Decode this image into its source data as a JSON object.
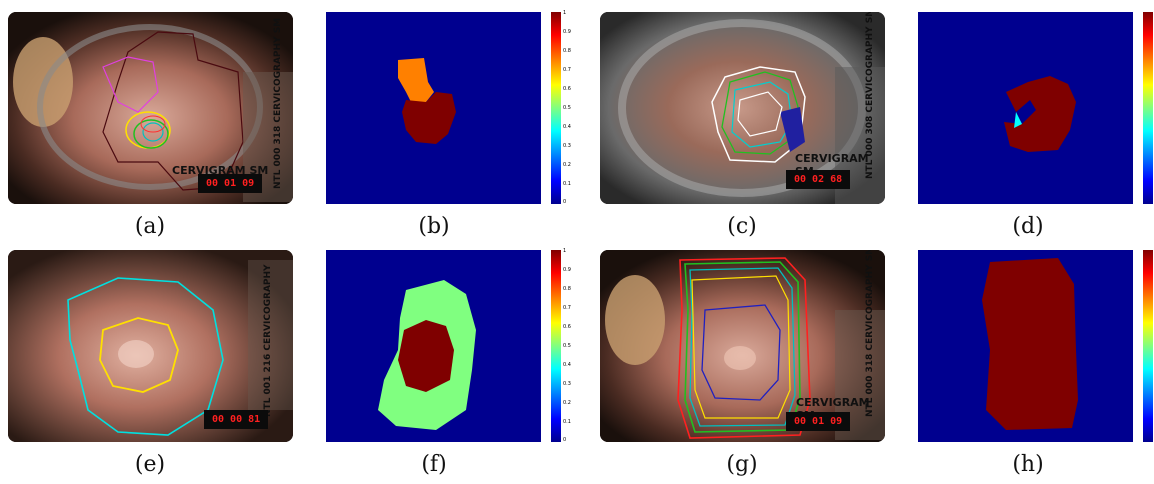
{
  "panels": [
    {
      "caption": "(a)",
      "stamp": "00 01 09",
      "vertical_text": "NTL  000 318  CERVICOGRAPHY SM",
      "cervigram": "CERVIGRAM SM"
    },
    {
      "caption": "(b)"
    },
    {
      "caption": "(c)",
      "stamp": "00 02 68",
      "vertical_text": "NTL  000 308  CERVICOGRAPHY SM",
      "cervigram": "CERVIGRAM SM"
    },
    {
      "caption": "(d)"
    },
    {
      "caption": "(e)",
      "stamp": "00 00 81",
      "vertical_text": "NTL  001 216  CERVICOGRAPHY",
      "cervigram": ""
    },
    {
      "caption": "(f)"
    },
    {
      "caption": "(g)",
      "stamp": "00 01 09",
      "vertical_text": "NTL  000 318  CERVICOGRAPHY SM",
      "cervigram": "CERVIGRAM SM"
    },
    {
      "caption": "(h)"
    }
  ],
  "colorbar_ticks": [
    "1",
    "0.9",
    "0.8",
    "0.7",
    "0.6",
    "0.5",
    "0.4",
    "0.3",
    "0.2",
    "0.1",
    "0"
  ],
  "colors": {
    "background_map": "#00008f",
    "region_high": "#7f0000",
    "region_mid": "#ff8000",
    "region_low": "#80ff80"
  }
}
